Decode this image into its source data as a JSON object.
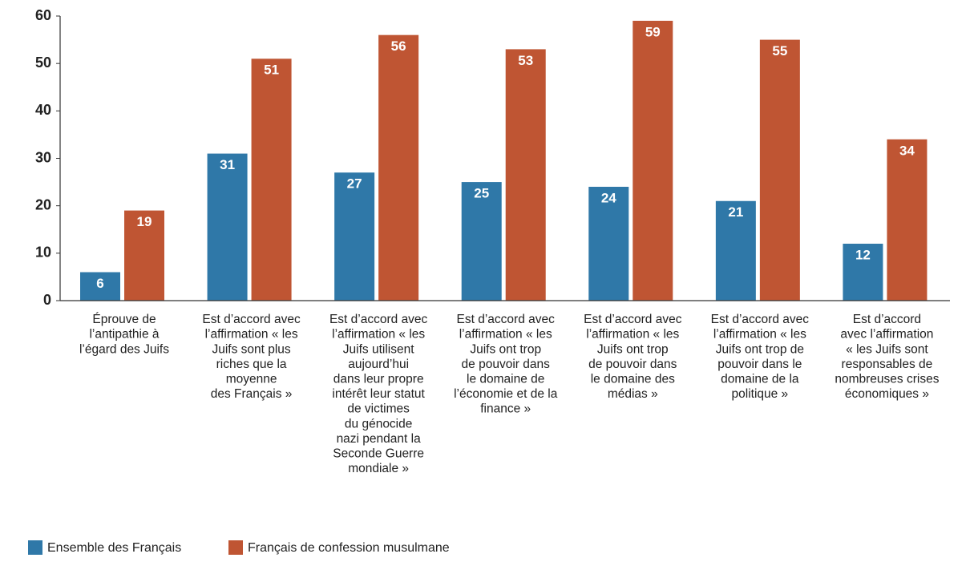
{
  "chart_data": {
    "type": "bar",
    "categories": [
      [
        "Éprouve de",
        "l’antipathie à",
        "l’égard des Juifs"
      ],
      [
        "Est d’accord avec",
        "l’affirmation « les",
        "Juifs sont plus",
        "riches que la",
        "moyenne",
        "des Français »"
      ],
      [
        "Est d’accord avec",
        "l’affirmation « les",
        "Juifs utilisent",
        "aujourd’hui",
        "dans leur propre",
        "intérêt leur statut",
        "de victimes",
        "du génocide",
        "nazi pendant la",
        "Seconde Guerre",
        "mondiale »"
      ],
      [
        "Est d’accord avec",
        "l’affirmation « les",
        "Juifs ont trop",
        "de pouvoir dans",
        "le domaine de",
        "l’économie et de la",
        "finance »"
      ],
      [
        "Est d’accord avec",
        "l’affirmation « les",
        "Juifs ont trop",
        "de pouvoir dans",
        "le domaine des",
        "médias »"
      ],
      [
        "Est d’accord avec",
        "l’affirmation « les",
        "Juifs ont trop de",
        "pouvoir dans le",
        "domaine de la",
        "politique »"
      ],
      [
        "Est d’accord",
        "avec l’affirmation",
        "« les Juifs sont",
        "responsables de",
        "nombreuses crises",
        "économiques »"
      ]
    ],
    "series": [
      {
        "name": "Ensemble des Français",
        "color": "#2f78a8",
        "values": [
          6,
          31,
          27,
          25,
          24,
          21,
          12
        ]
      },
      {
        "name": "Français de confession musulmane",
        "color": "#bf5533",
        "values": [
          19,
          51,
          56,
          53,
          59,
          55,
          34
        ]
      }
    ],
    "ylim": [
      0,
      60
    ],
    "yticks": [
      0,
      10,
      20,
      30,
      40,
      50,
      60
    ],
    "grid": false
  }
}
